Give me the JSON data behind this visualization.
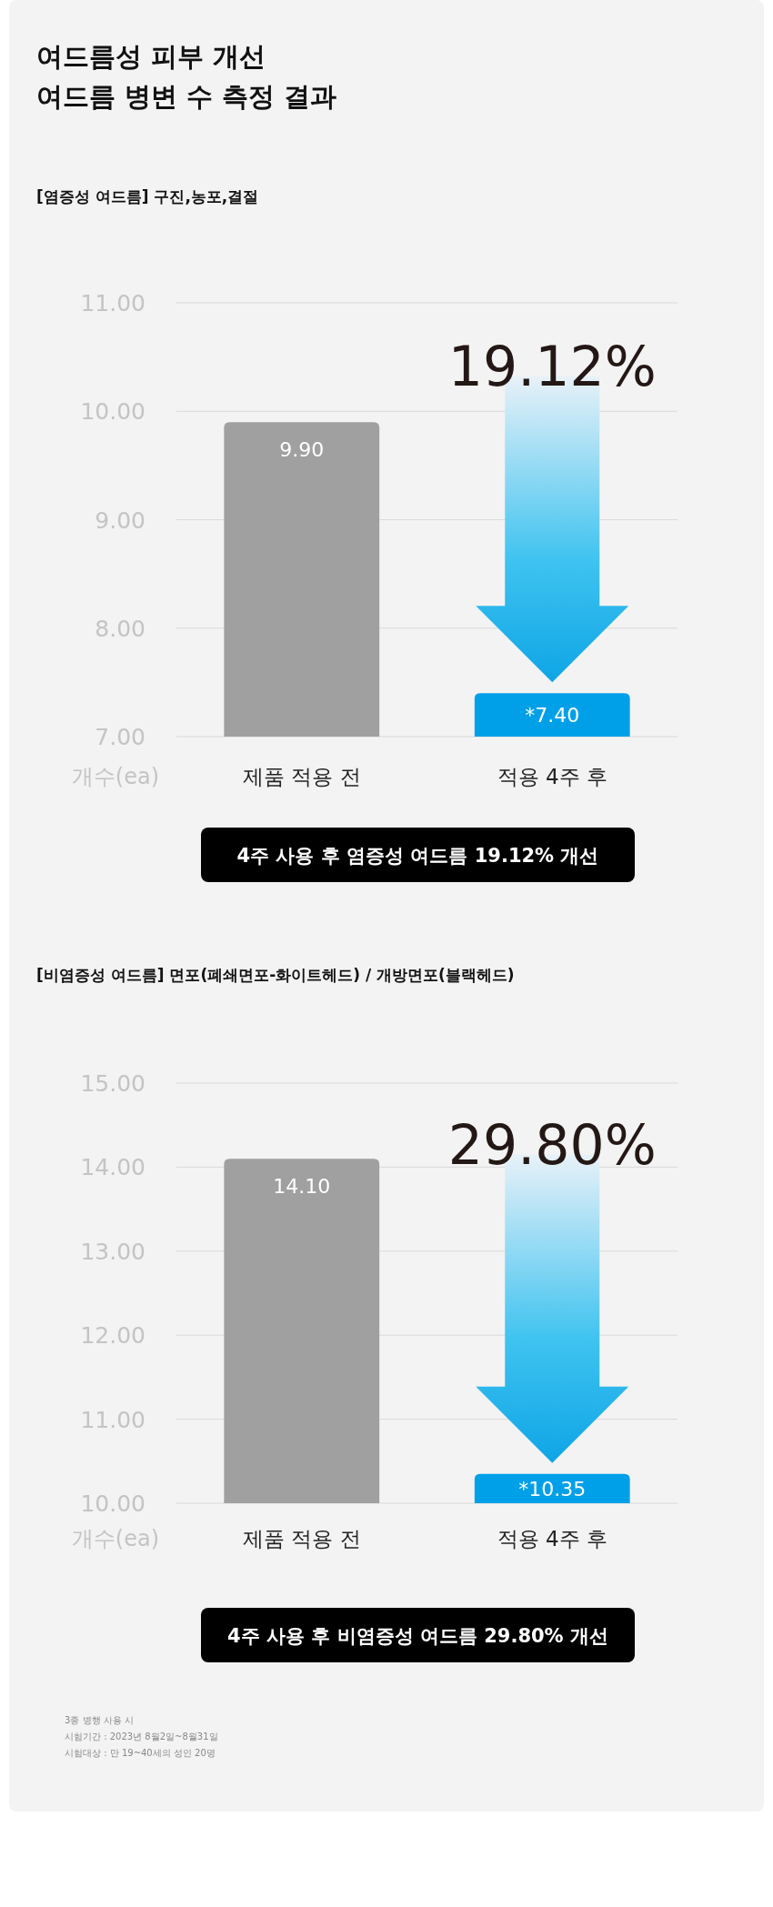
{
  "chart_data": [
    {
      "type": "bar",
      "title": "여드름성 피부 개선\n여드름 병변 수 측정 결과",
      "subtitle": "[염증성 여드름] 구진,농포,결절",
      "ylabel": "개수(ea)",
      "categories": [
        "제품 적용 전",
        "적용 4주 후"
      ],
      "values": [
        9.9,
        7.4
      ],
      "colors": [
        "#a0a0a0",
        "#00a0e9"
      ],
      "value_labels": [
        "9.90",
        "*7.40"
      ],
      "ylim": [
        7,
        11
      ],
      "yticks": [
        {
          "value": 7,
          "label": "7.00"
        },
        {
          "value": 8,
          "label": "8.00"
        },
        {
          "value": 9,
          "label": "9.00"
        },
        {
          "value": 10,
          "label": "10.00"
        },
        {
          "value": 11,
          "label": "11.00"
        }
      ],
      "grid": "y",
      "annotations": [
        "19.12%",
        "4주 사용 후 염증성 여드름 19.12% 개선"
      ]
    },
    {
      "type": "bar",
      "title": "[비염증성 여드름] 면포(폐쇄면포-화이트헤드) / 개방면포(블랙헤드)",
      "ylabel": "개수(ea)",
      "categories": [
        "제품 적용 전",
        "적용 4주 후"
      ],
      "values": [
        14.1,
        10.35
      ],
      "colors": [
        "#a0a0a0",
        "#00a0e9"
      ],
      "value_labels": [
        "14.10",
        "*10.35"
      ],
      "ylim": [
        10,
        15
      ],
      "yticks": [
        {
          "value": 10,
          "label": "10.00"
        },
        {
          "value": 11,
          "label": "11.00"
        },
        {
          "value": 12,
          "label": "12.00"
        },
        {
          "value": 13,
          "label": "13.00"
        },
        {
          "value": 14,
          "label": "14.00"
        },
        {
          "value": 15,
          "label": "15.00"
        }
      ],
      "grid": "y",
      "annotations": [
        "29.80%",
        "4주 사용 후 비염증성 여드름 29.80% 개선",
        "3종 병행 사용 시",
        "시험기간 : 2023년 8월2일~8월31일",
        "시험대상 : 만 19~40세의 성인 20명"
      ]
    }
  ]
}
